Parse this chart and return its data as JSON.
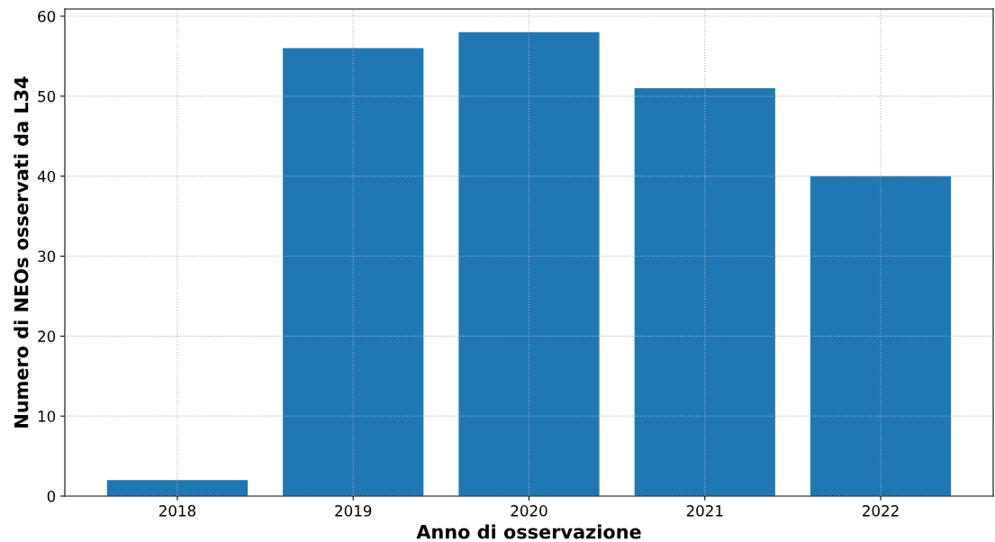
{
  "chart_data": {
    "type": "bar",
    "xlabel": "Anno di osservazione",
    "ylabel": "Numero di NEOs osservati da L34",
    "categories": [
      "2018",
      "2019",
      "2020",
      "2021",
      "2022"
    ],
    "values": [
      2,
      56,
      58,
      51,
      40
    ],
    "color": "#1f77b4",
    "ylim": [
      0,
      60.9
    ],
    "yticks": [
      0,
      10,
      20,
      30,
      40,
      50,
      60
    ],
    "grid": true
  }
}
